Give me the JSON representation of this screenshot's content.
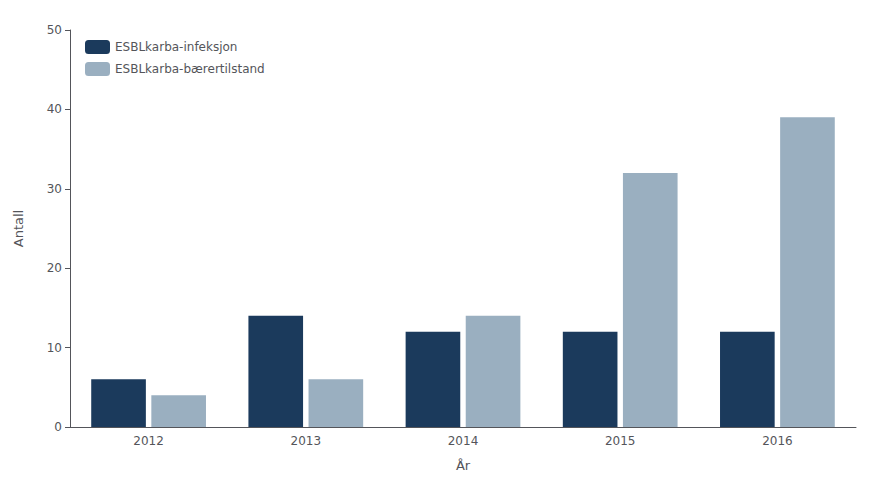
{
  "chart_data": {
    "type": "bar",
    "xlabel": "År",
    "ylabel": "Antall",
    "categories": [
      "2012",
      "2013",
      "2014",
      "2015",
      "2016"
    ],
    "series": [
      {
        "name": "ESBLkarba-infeksjon",
        "color": "#1b3a5c",
        "values": [
          6,
          14,
          12,
          12,
          12
        ]
      },
      {
        "name": "ESBLkarba-bærertilstand",
        "color": "#9aafc0",
        "values": [
          4,
          6,
          14,
          32,
          39
        ]
      }
    ],
    "ylim": [
      0,
      50
    ],
    "yticks": [
      0,
      10,
      20,
      30,
      40,
      50
    ],
    "grid": false,
    "legend": "upper left"
  }
}
